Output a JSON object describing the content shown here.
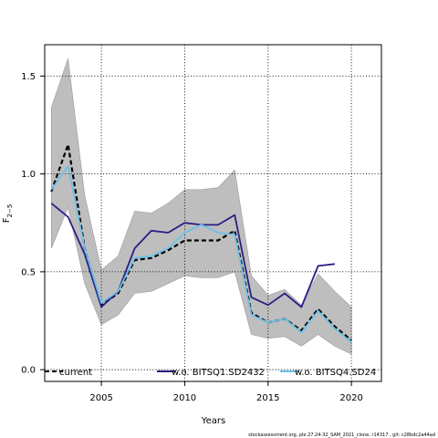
{
  "chart_data": {
    "type": "line",
    "xlabel": "Years",
    "ylabel": "F",
    "ylabel_sub": "2−5",
    "xlim": [
      2001.6,
      2021.8
    ],
    "ylim": [
      -0.06,
      1.66
    ],
    "x_ticks": [
      2005,
      2010,
      2015,
      2020
    ],
    "y_ticks": [
      0.0,
      0.5,
      1.0,
      1.5
    ],
    "x_tick_labels": [
      "2005",
      "2010",
      "2015",
      "2020"
    ],
    "y_tick_labels": [
      "0.0",
      "0.5",
      "1.0",
      "1.5"
    ],
    "grid": true,
    "legend_position": "bottom",
    "confidence_band": {
      "x": [
        2002,
        2003,
        2004,
        2005,
        2006,
        2007,
        2008,
        2009,
        2010,
        2011,
        2012,
        2013,
        2014,
        2015,
        2016,
        2017,
        2018,
        2019,
        2020
      ],
      "upper": [
        1.34,
        1.59,
        0.89,
        0.51,
        0.58,
        0.81,
        0.8,
        0.85,
        0.92,
        0.92,
        0.93,
        1.02,
        0.48,
        0.38,
        0.41,
        0.33,
        0.49,
        0.4,
        0.32
      ],
      "lower": [
        0.62,
        0.83,
        0.44,
        0.23,
        0.28,
        0.39,
        0.4,
        0.44,
        0.48,
        0.47,
        0.47,
        0.5,
        0.18,
        0.16,
        0.17,
        0.12,
        0.18,
        0.12,
        0.08
      ],
      "color": "#bebebe"
    },
    "series": [
      {
        "name": "current",
        "color": "#000000",
        "style": "dashed",
        "x": [
          2002,
          2003,
          2004,
          2005,
          2006,
          2007,
          2008,
          2009,
          2010,
          2011,
          2012,
          2013,
          2014,
          2015,
          2016,
          2017,
          2018,
          2019,
          2020
        ],
        "values": [
          0.91,
          1.15,
          0.62,
          0.33,
          0.39,
          0.56,
          0.57,
          0.61,
          0.66,
          0.66,
          0.66,
          0.71,
          0.29,
          0.24,
          0.26,
          0.2,
          0.31,
          0.22,
          0.15
        ]
      },
      {
        "name": "w.o. BITSQ1.SD2432",
        "color": "#2b1f85",
        "style": "solid",
        "x": [
          2002,
          2003,
          2004,
          2005,
          2006,
          2007,
          2008,
          2009,
          2010,
          2011,
          2012,
          2013,
          2014,
          2015,
          2016,
          2017,
          2018,
          2019
        ],
        "values": [
          0.85,
          0.78,
          0.59,
          0.32,
          0.4,
          0.62,
          0.71,
          0.7,
          0.75,
          0.74,
          0.74,
          0.79,
          0.37,
          0.33,
          0.39,
          0.32,
          0.53,
          0.54
        ]
      },
      {
        "name": "w.o. BITSQ4.SD24",
        "color": "#6cc0e8",
        "style": "solid",
        "x": [
          2002,
          2003,
          2004,
          2005,
          2006,
          2007,
          2008,
          2009,
          2010,
          2011,
          2012,
          2013,
          2014,
          2015,
          2016,
          2017,
          2018,
          2019,
          2020
        ],
        "values": [
          0.92,
          1.04,
          0.62,
          0.34,
          0.4,
          0.57,
          0.58,
          0.62,
          0.7,
          0.74,
          0.7,
          0.69,
          0.28,
          0.24,
          0.26,
          0.19,
          0.3,
          0.21,
          0.14
        ]
      }
    ],
    "footer": "stockassessment.org, ple.27.24-32_SAM_2021_clone, r14317 , git: c28bdc2a44ad"
  }
}
